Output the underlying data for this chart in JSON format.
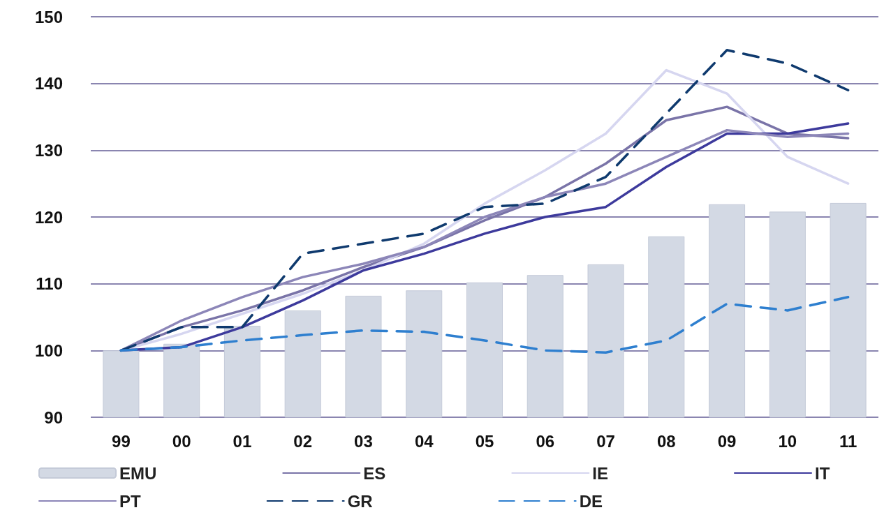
{
  "chart_data": {
    "type": "bar",
    "categories": [
      "99",
      "00",
      "01",
      "02",
      "03",
      "04",
      "05",
      "06",
      "07",
      "08",
      "09",
      "10",
      "11"
    ],
    "series": [
      {
        "name": "EMU",
        "color": "#d3d9e4",
        "values": [
          100,
          101,
          103.7,
          106,
          108.2,
          109,
          110.2,
          111.3,
          112.9,
          117.1,
          121.9,
          120.8,
          122.1
        ]
      },
      {
        "name": "ES",
        "type": "line",
        "color": "#7a74a8",
        "line_style": "solid",
        "values": [
          100,
          103.5,
          106,
          109,
          112.5,
          115.5,
          119.5,
          123,
          128,
          134.5,
          136.5,
          132.5,
          131.8
        ]
      },
      {
        "name": "IE",
        "type": "line",
        "color": "#d6d6f0",
        "line_style": "solid",
        "values": [
          100,
          102.5,
          105.5,
          108.5,
          112,
          116,
          122,
          127,
          132.5,
          142,
          138.5,
          129,
          125
        ]
      },
      {
        "name": "IT",
        "type": "line",
        "color": "#3d3a9c",
        "line_style": "solid",
        "values": [
          100,
          100.5,
          103.5,
          107.5,
          112,
          114.5,
          117.5,
          120,
          121.5,
          127.5,
          132.5,
          132.5,
          134
        ]
      },
      {
        "name": "PT",
        "type": "line",
        "color": "#8c86b8",
        "line_style": "solid",
        "values": [
          100,
          104.5,
          108,
          111,
          113,
          115.5,
          120,
          123,
          125,
          129,
          133,
          132,
          132.5
        ]
      },
      {
        "name": "GR",
        "type": "line",
        "color": "#0f3a6e",
        "line_style": "dashed",
        "values": [
          100,
          103.5,
          103.5,
          114.5,
          116,
          117.5,
          121.5,
          122,
          126,
          135.5,
          145,
          143,
          139
        ]
      },
      {
        "name": "DE",
        "type": "line",
        "color": "#2e7fcf",
        "line_style": "dashed",
        "values": [
          100,
          100.5,
          101.5,
          102.3,
          103,
          102.8,
          101.5,
          100,
          99.7,
          101.5,
          107,
          106,
          108
        ]
      }
    ],
    "ylim": [
      90,
      150
    ],
    "yticks": [
      90,
      100,
      110,
      120,
      130,
      140,
      150
    ],
    "grid": "y",
    "legend": "bottom",
    "marker": "none"
  }
}
